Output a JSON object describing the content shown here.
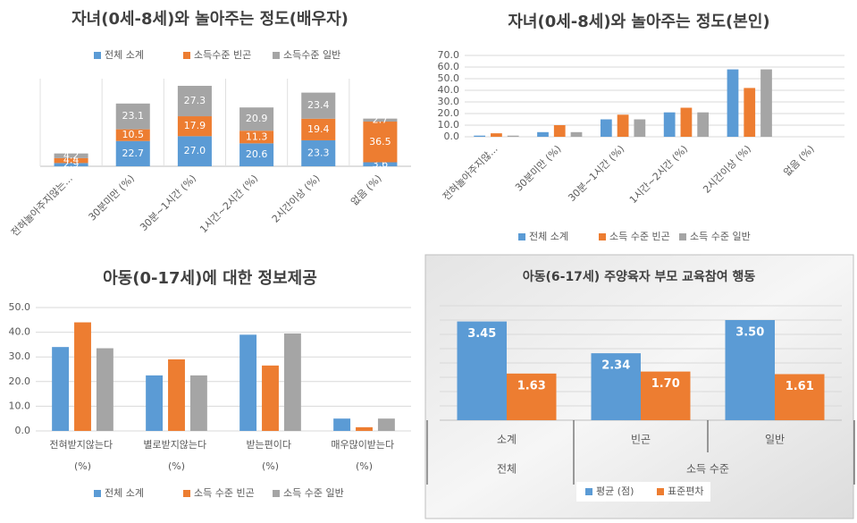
{
  "chart_data": [
    {
      "type": "bar",
      "stacked": true,
      "title": "자녀(0세-8세)와 놀아주는 정도(배우자)",
      "categories": [
        "전혀놀아주지않는...",
        "30분미만 (%)",
        "30분~1시간 (%)",
        "1시간~2시간 (%)",
        "2시간이상 (%)",
        "없음 (%)"
      ],
      "series": [
        {
          "name": "전체 소계",
          "color": "#5b9bd5",
          "values": [
            2.9,
            22.7,
            27.0,
            20.6,
            23.3,
            3.6
          ],
          "value_labels": [
            "2.9",
            "22.7",
            "27.0",
            "20.6",
            "23.3",
            "3.6"
          ]
        },
        {
          "name": "소득수준 빈곤",
          "color": "#ed7d31",
          "values": [
            4.4,
            10.5,
            17.9,
            11.3,
            19.4,
            36.5
          ],
          "value_labels": [
            "4.4",
            "10.5",
            "17.9",
            "11.3",
            "19.4",
            "36.5"
          ]
        },
        {
          "name": "소득수준 일반",
          "color": "#a5a5a5",
          "values": [
            4.2,
            23.1,
            27.3,
            20.9,
            23.4,
            2.7
          ],
          "value_labels": [
            "4.2",
            "23.1",
            "27.3",
            "20.9",
            "23.4",
            "2.7"
          ]
        }
      ]
    },
    {
      "type": "bar",
      "title": "자녀(0세-8세)와 놀아주는 정도(본인)",
      "categories": [
        "전혀놀아주지않...",
        "30분미만 (%)",
        "30분~1시간 (%)",
        "1시간~2시간 (%)",
        "2시간이상 (%)",
        "없음 (%)"
      ],
      "series": [
        {
          "name": "전체 소계",
          "color": "#5b9bd5",
          "values": [
            1,
            4,
            15,
            21,
            58,
            0
          ]
        },
        {
          "name": "소득 수준 빈곤",
          "color": "#ed7d31",
          "values": [
            3,
            10,
            19,
            25,
            42,
            0
          ]
        },
        {
          "name": "소득 수준 일반",
          "color": "#a5a5a5",
          "values": [
            1,
            4,
            15,
            21,
            58,
            0
          ]
        }
      ],
      "ylim": [
        0,
        70
      ],
      "yticks": [
        {
          "value": 0,
          "label": "0.0"
        },
        {
          "value": 10,
          "label": "10.0"
        },
        {
          "value": 20,
          "label": "20.0"
        },
        {
          "value": 30,
          "label": "30.0"
        },
        {
          "value": 40,
          "label": "40.0"
        },
        {
          "value": 50,
          "label": "50.0"
        },
        {
          "value": 60,
          "label": "60.0"
        },
        {
          "value": 70,
          "label": "70.0"
        }
      ],
      "grid": true
    },
    {
      "type": "bar",
      "title": "아동(0-17세)에 대한 정보제공",
      "categories": [
        "전혀받지않는다 (%)",
        "별로받지않는다 (%)",
        "받는편이다 (%)",
        "매우많이받는다 (%)"
      ],
      "series": [
        {
          "name": "전체 소계",
          "color": "#5b9bd5",
          "values": [
            34,
            22.5,
            39,
            5
          ]
        },
        {
          "name": "소득 수준 빈곤",
          "color": "#ed7d31",
          "values": [
            44,
            29,
            26.5,
            1.5
          ]
        },
        {
          "name": "소득 수준 일반",
          "color": "#a5a5a5",
          "values": [
            33.5,
            22.5,
            39.5,
            5
          ]
        }
      ],
      "ylim": [
        0,
        50
      ],
      "yticks": [
        {
          "value": 0,
          "label": "0.0"
        },
        {
          "value": 10,
          "label": "10.0"
        },
        {
          "value": 20,
          "label": "20.0"
        },
        {
          "value": 30,
          "label": "30.0"
        },
        {
          "value": 40,
          "label": "40.0"
        },
        {
          "value": 50,
          "label": "50.0"
        }
      ],
      "grid": true
    },
    {
      "type": "bar",
      "title": "아동(6-17세) 주양육자 부모 교육참여 행동",
      "categories": [
        "소계",
        "빈곤",
        "일반"
      ],
      "groups": [
        {
          "label": "전체",
          "span": 1
        },
        {
          "label": "소득 수준",
          "span": 2
        }
      ],
      "series": [
        {
          "name": "평균 (점)",
          "color": "#5b9bd5",
          "values": [
            3.45,
            2.34,
            3.5
          ],
          "value_labels": [
            "3.45",
            "2.34",
            "3.50"
          ]
        },
        {
          "name": "표준편차",
          "color": "#ed7d31",
          "values": [
            1.63,
            1.7,
            1.61
          ],
          "value_labels": [
            "1.63",
            "1.70",
            "1.61"
          ]
        }
      ],
      "ylim": [
        0,
        4
      ],
      "yticks": [
        0,
        0.5,
        1,
        1.5,
        2,
        2.5,
        3,
        3.5,
        4
      ],
      "ytick_labels": false,
      "grid": true
    }
  ]
}
